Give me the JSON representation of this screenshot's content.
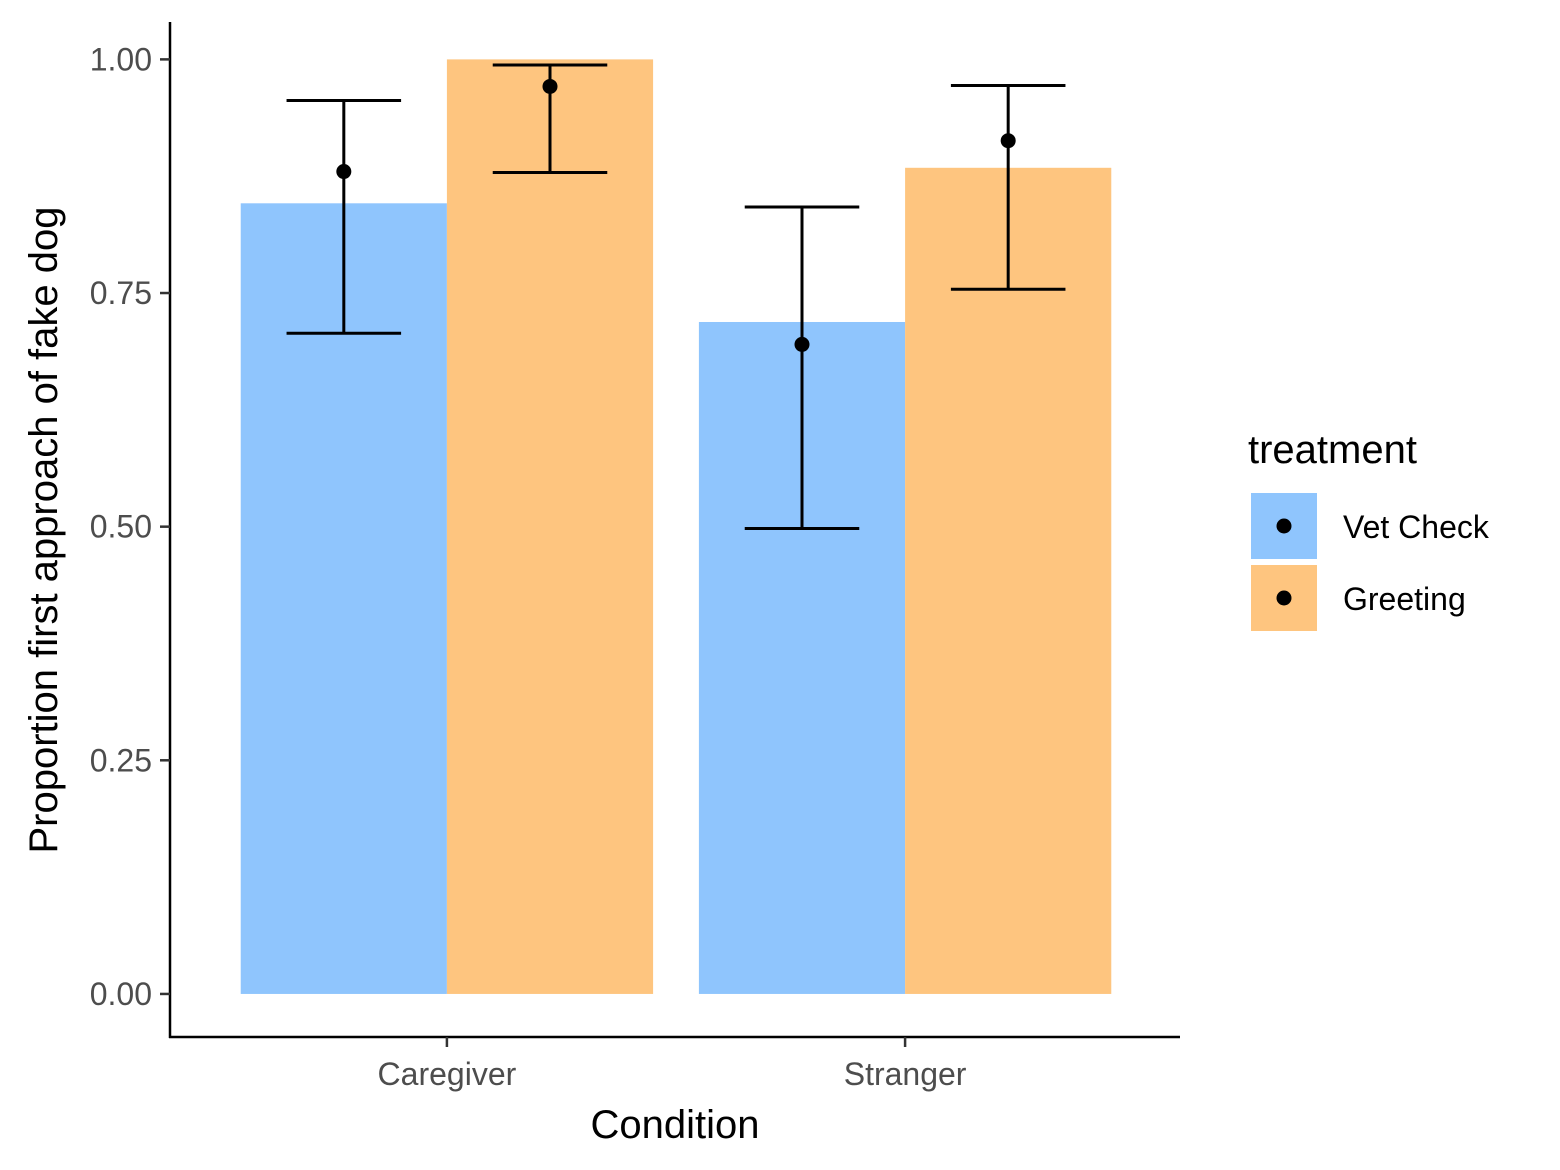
{
  "chart_data": {
    "type": "bar",
    "xlabel": "Condition",
    "ylabel": "Proportion first approach of fake dog",
    "categories": [
      "Caregiver",
      "Stranger"
    ],
    "ylim": [
      -0.045,
      1.04
    ],
    "yticks": [
      "0.00",
      "0.25",
      "0.50",
      "0.75",
      "1.00"
    ],
    "legend": {
      "title": "treatment",
      "position": "right"
    },
    "series": [
      {
        "name": "Vet Check",
        "color": "#8fc5fd",
        "values": [
          0.846,
          0.719
        ],
        "points": [
          0.88,
          0.695
        ],
        "error_low": [
          0.707,
          0.498
        ],
        "error_high": [
          0.956,
          0.842
        ]
      },
      {
        "name": "Greeting",
        "color": "#fec57f",
        "values": [
          1.0,
          0.884
        ],
        "points": [
          0.971,
          0.913
        ],
        "error_low": [
          0.879,
          0.754
        ],
        "error_high": [
          0.994,
          0.972
        ]
      }
    ],
    "grid": false
  }
}
